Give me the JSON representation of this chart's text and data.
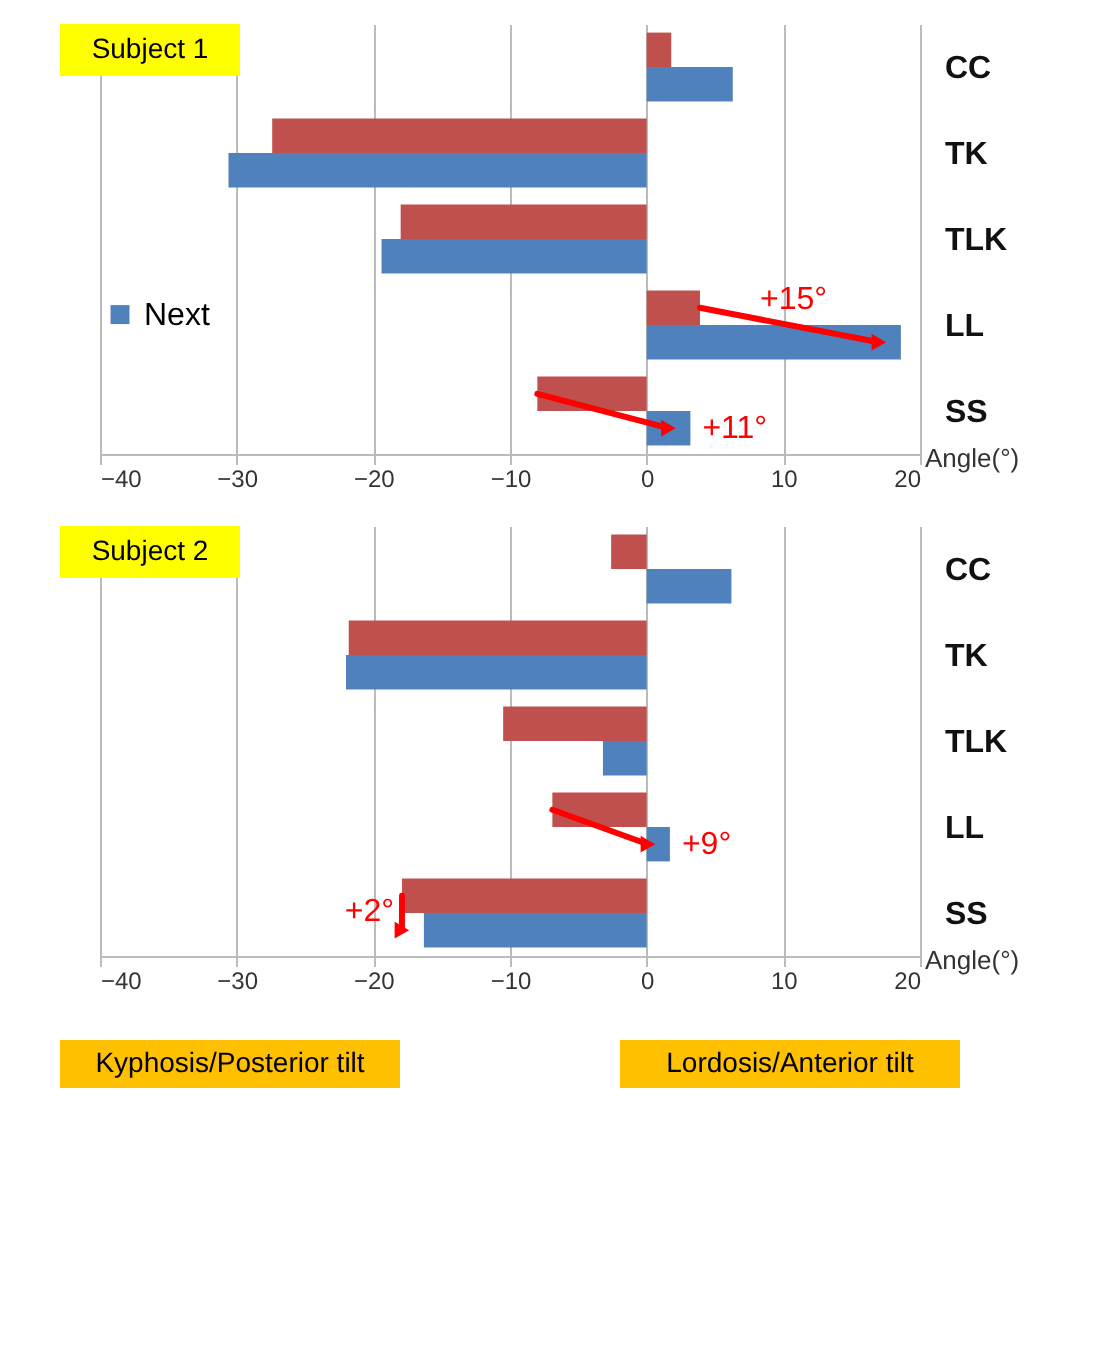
{
  "chart_data": [
    {
      "type": "bar",
      "orientation": "horizontal",
      "title": "Subject 1",
      "xlabel": "Angle(°)",
      "categories": [
        "CC",
        "TK",
        "TLK",
        "LL",
        "SS"
      ],
      "xlim": [
        -40,
        20
      ],
      "xticks": [
        -40,
        -30,
        -20,
        -10,
        0,
        10,
        20
      ],
      "grid": "x",
      "legend": "left",
      "series": [
        {
          "color": "#c0504d",
          "values": [
            1.8,
            -27.4,
            -18.0,
            3.9,
            -8.0
          ]
        },
        {
          "name": "Next",
          "color": "#4f81bd",
          "values": [
            6.3,
            -30.6,
            -19.4,
            18.6,
            3.2
          ]
        }
      ],
      "annotations": [
        {
          "text": "+15°",
          "x": 18.6,
          "y": "LL"
        },
        {
          "text": "+11°",
          "x": 3.2,
          "y": "SS"
        }
      ]
    },
    {
      "type": "bar",
      "orientation": "horizontal",
      "title": "Subject 2",
      "xlabel": "Angle(°)",
      "categories": [
        "CC",
        "TK",
        "TLK",
        "LL",
        "SS"
      ],
      "xlim": [
        -40,
        20
      ],
      "xticks": [
        -40,
        -30,
        -20,
        -10,
        0,
        10,
        20
      ],
      "grid": "x",
      "series": [
        {
          "color": "#c0504d",
          "values": [
            -2.6,
            -21.8,
            -10.5,
            -6.9,
            -17.9
          ]
        },
        {
          "color": "#4f81bd",
          "values": [
            6.2,
            -22.0,
            -3.2,
            1.7,
            -16.3
          ]
        }
      ],
      "annotations": [
        {
          "text": "+9°",
          "x": 1.7,
          "y": "LL"
        },
        {
          "text": "+2°",
          "x": -16.3,
          "y": "SS"
        },
        "Kyphosis/Posterior tilt",
        "Lordosis/Anterior tilt"
      ]
    }
  ]
}
